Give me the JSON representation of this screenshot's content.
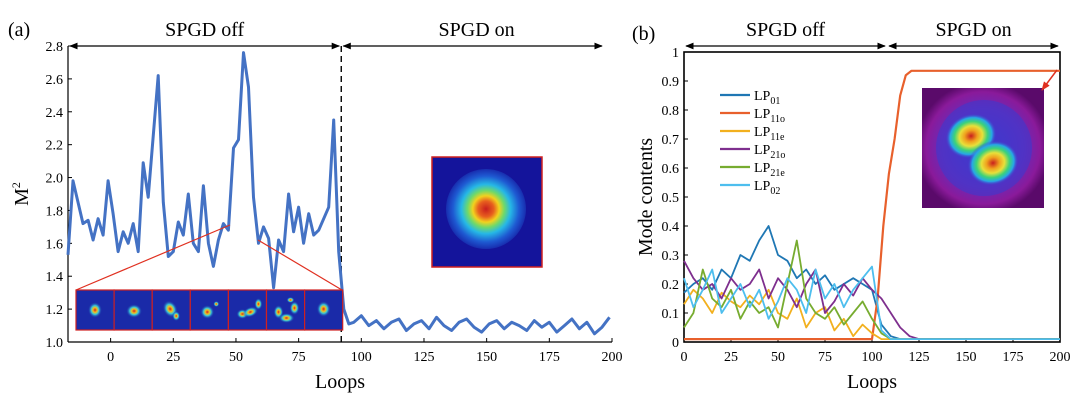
{
  "chart_data": [
    {
      "panel_label": "(a)",
      "type": "line",
      "xlabel": "Loops",
      "ylabel": "M²",
      "ylim": [
        1.0,
        2.8
      ],
      "xlim": [
        -17,
        200
      ],
      "xticks": [
        "0",
        "25",
        "50",
        "75",
        "100",
        "125",
        "150",
        "175",
        "200"
      ],
      "yticks": [
        "1.0",
        "1.2",
        "1.4",
        "1.6",
        "1.8",
        "2.0",
        "2.2",
        "2.4",
        "2.6",
        "2.8"
      ],
      "grid": false,
      "regions": [
        {
          "label": "SPGD off",
          "from": -17,
          "to": 92
        },
        {
          "label": "SPGD on",
          "from": 92,
          "to": 200
        }
      ],
      "divider_x": 92,
      "series": [
        {
          "color": "#4472C4",
          "x": [
            -17,
            -15,
            -13,
            -11,
            -9,
            -7,
            -5,
            -3,
            -1,
            1,
            3,
            5,
            7,
            9,
            11,
            13,
            15,
            17,
            19,
            21,
            23,
            25,
            27,
            29,
            31,
            33,
            35,
            37,
            39,
            41,
            43,
            45,
            47,
            49,
            51,
            53,
            55,
            57,
            59,
            61,
            63,
            65,
            67,
            69,
            71,
            73,
            75,
            77,
            79,
            81,
            83,
            85,
            87,
            89,
            91,
            93,
            95,
            97,
            100,
            103,
            106,
            109,
            112,
            115,
            118,
            121,
            124,
            127,
            130,
            133,
            136,
            139,
            142,
            145,
            148,
            151,
            154,
            157,
            160,
            163,
            166,
            169,
            172,
            175,
            178,
            181,
            184,
            187,
            190,
            193,
            196,
            199
          ],
          "y": [
            1.53,
            1.98,
            1.85,
            1.72,
            1.74,
            1.62,
            1.75,
            1.65,
            1.98,
            1.78,
            1.55,
            1.67,
            1.6,
            1.72,
            1.55,
            2.09,
            1.88,
            2.25,
            2.62,
            1.85,
            1.52,
            1.55,
            1.73,
            1.65,
            1.9,
            1.6,
            1.55,
            1.95,
            1.6,
            1.46,
            1.62,
            1.72,
            1.68,
            2.18,
            2.23,
            2.76,
            2.55,
            1.88,
            1.6,
            1.7,
            1.63,
            1.33,
            1.62,
            1.55,
            1.9,
            1.67,
            1.82,
            1.6,
            1.78,
            1.65,
            1.68,
            1.75,
            1.82,
            2.35,
            1.55,
            1.2,
            1.11,
            1.12,
            1.16,
            1.1,
            1.13,
            1.08,
            1.12,
            1.14,
            1.07,
            1.11,
            1.13,
            1.08,
            1.15,
            1.1,
            1.07,
            1.12,
            1.14,
            1.09,
            1.06,
            1.11,
            1.13,
            1.08,
            1.12,
            1.1,
            1.07,
            1.13,
            1.09,
            1.12,
            1.06,
            1.1,
            1.14,
            1.08,
            1.12,
            1.05,
            1.09,
            1.15
          ]
        }
      ]
    },
    {
      "panel_label": "(b)",
      "type": "line",
      "xlabel": "Loops",
      "ylabel": "Mode contents",
      "ylim": [
        0,
        1
      ],
      "xlim": [
        0,
        200
      ],
      "xticks": [
        "0",
        "25",
        "50",
        "75",
        "100",
        "125",
        "150",
        "175",
        "200"
      ],
      "yticks": [
        "0",
        "0.1",
        "0.2",
        "0.3",
        "0.4",
        "0.5",
        "0.6",
        "0.7",
        "0.8",
        "0.9",
        "1"
      ],
      "grid": false,
      "regions": [
        {
          "label": "SPGD off",
          "from": 0,
          "to": 108
        },
        {
          "label": "SPGD on",
          "from": 108,
          "to": 200
        }
      ],
      "legend_position": "top-left",
      "series": [
        {
          "name": "LP01",
          "base": "LP",
          "sub": "01",
          "color": "#1F77B4",
          "x": [
            0,
            5,
            10,
            15,
            20,
            25,
            30,
            35,
            40,
            45,
            50,
            55,
            60,
            65,
            70,
            75,
            80,
            85,
            90,
            95,
            100,
            105,
            110,
            115,
            120,
            130,
            140,
            160,
            180,
            200
          ],
          "y": [
            0.17,
            0.2,
            0.22,
            0.18,
            0.25,
            0.22,
            0.3,
            0.28,
            0.35,
            0.4,
            0.3,
            0.28,
            0.22,
            0.25,
            0.2,
            0.23,
            0.18,
            0.2,
            0.22,
            0.2,
            0.18,
            0.06,
            0.02,
            0.01,
            0.01,
            0.01,
            0.01,
            0.01,
            0.01,
            0.01
          ]
        },
        {
          "name": "LP11o",
          "base": "LP",
          "sub": "11o",
          "color": "#E8602C",
          "x": [
            0,
            10,
            20,
            30,
            40,
            50,
            60,
            70,
            80,
            90,
            100,
            103,
            106,
            109,
            112,
            115,
            118,
            121,
            130,
            140,
            160,
            180,
            200
          ],
          "y": [
            0.01,
            0.01,
            0.01,
            0.01,
            0.01,
            0.01,
            0.01,
            0.01,
            0.01,
            0.01,
            0.01,
            0.15,
            0.4,
            0.58,
            0.7,
            0.85,
            0.92,
            0.935,
            0.935,
            0.935,
            0.935,
            0.935,
            0.935
          ]
        },
        {
          "name": "LP11e",
          "base": "LP",
          "sub": "11e",
          "color": "#F2B01E",
          "x": [
            0,
            5,
            10,
            15,
            20,
            25,
            30,
            35,
            40,
            45,
            50,
            55,
            60,
            65,
            70,
            75,
            80,
            85,
            90,
            95,
            100,
            105,
            110,
            120,
            140,
            160,
            180,
            200
          ],
          "y": [
            0.13,
            0.18,
            0.15,
            0.1,
            0.17,
            0.14,
            0.12,
            0.16,
            0.13,
            0.18,
            0.1,
            0.08,
            0.15,
            0.05,
            0.1,
            0.12,
            0.04,
            0.08,
            0.02,
            0.06,
            0.03,
            0.01,
            0.01,
            0.01,
            0.01,
            0.01,
            0.01,
            0.01
          ]
        },
        {
          "name": "LP21o",
          "base": "LP",
          "sub": "21o",
          "color": "#7E2F8E",
          "x": [
            0,
            5,
            10,
            15,
            20,
            25,
            30,
            35,
            40,
            45,
            50,
            55,
            60,
            65,
            70,
            75,
            80,
            85,
            90,
            95,
            100,
            105,
            110,
            115,
            120,
            125,
            130,
            140,
            160,
            180,
            200
          ],
          "y": [
            0.28,
            0.22,
            0.18,
            0.2,
            0.15,
            0.22,
            0.18,
            0.2,
            0.25,
            0.15,
            0.22,
            0.18,
            0.12,
            0.2,
            0.25,
            0.1,
            0.14,
            0.2,
            0.16,
            0.22,
            0.18,
            0.15,
            0.1,
            0.05,
            0.02,
            0.01,
            0.01,
            0.01,
            0.01,
            0.01,
            0.01
          ]
        },
        {
          "name": "LP21e",
          "base": "LP",
          "sub": "21e",
          "color": "#77AC30",
          "x": [
            0,
            5,
            10,
            15,
            20,
            25,
            30,
            35,
            40,
            45,
            50,
            55,
            60,
            65,
            70,
            75,
            80,
            85,
            90,
            95,
            100,
            105,
            110,
            120,
            140,
            160,
            180,
            200
          ],
          "y": [
            0.05,
            0.1,
            0.25,
            0.15,
            0.12,
            0.18,
            0.08,
            0.14,
            0.1,
            0.12,
            0.05,
            0.2,
            0.35,
            0.15,
            0.1,
            0.08,
            0.12,
            0.06,
            0.1,
            0.14,
            0.08,
            0.03,
            0.01,
            0.01,
            0.01,
            0.01,
            0.01,
            0.01
          ]
        },
        {
          "name": "LP02",
          "base": "LP",
          "sub": "02",
          "color": "#4DBEEE",
          "x": [
            0,
            5,
            10,
            15,
            20,
            25,
            30,
            35,
            40,
            45,
            50,
            55,
            60,
            65,
            70,
            75,
            80,
            85,
            90,
            95,
            100,
            105,
            110,
            120,
            140,
            160,
            180,
            200
          ],
          "y": [
            0.22,
            0.12,
            0.18,
            0.25,
            0.1,
            0.15,
            0.2,
            0.12,
            0.18,
            0.08,
            0.14,
            0.22,
            0.18,
            0.1,
            0.25,
            0.15,
            0.2,
            0.12,
            0.18,
            0.22,
            0.26,
            0.04,
            0.01,
            0.01,
            0.01,
            0.01,
            0.01,
            0.01
          ]
        }
      ]
    }
  ]
}
